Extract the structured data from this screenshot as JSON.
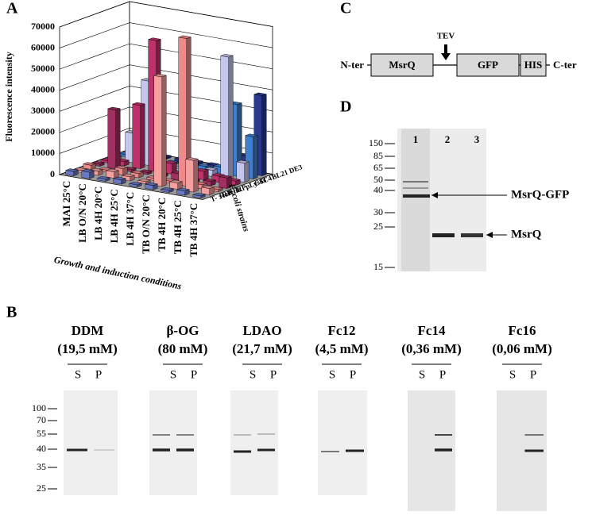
{
  "panel_labels": [
    "A",
    "B",
    "C",
    "D"
  ],
  "chart_data": {
    "type": "bar3d",
    "y_label": "Fluorescence intensity",
    "x_label": "Growth and induction conditions",
    "z_label": "E. coli strains",
    "categories": [
      "MAI 25°C",
      "LB O/N 20°C",
      "LB 4H 20°C",
      "LB 4H 25°C",
      "LB 4H 37°C",
      "TB O/N 20°C",
      "TB 4H 20°C",
      "TB 4H 25°C",
      "TB 4H 37°C"
    ],
    "series": [
      {
        "name": "BL21 DE3",
        "color": "#2b3a8f",
        "values": [
          1000,
          1000,
          1000,
          1000,
          1000,
          1000,
          2000,
          8000,
          38000
        ]
      },
      {
        "name": "C41",
        "color": "#3f7fcf",
        "values": [
          1000,
          1000,
          1000,
          1000,
          1000,
          2000,
          3000,
          34000,
          20000
        ]
      },
      {
        "name": "C43",
        "color": "#c4c6ec",
        "values": [
          1000,
          14000,
          40000,
          2000,
          1000,
          1000,
          3000,
          58000,
          9000
        ]
      },
      {
        "name": "pLysS",
        "color": "#c0306a",
        "values": [
          1000,
          2000,
          30000,
          62000,
          5000,
          2000,
          4000,
          3000,
          2000
        ]
      },
      {
        "name": "RP",
        "color": "#a03060",
        "values": [
          1000,
          28000,
          1000,
          1000,
          1000,
          3000,
          1000,
          2000,
          5000
        ]
      },
      {
        "name": "RIL",
        "color": "#f08a8a",
        "values": [
          2000,
          1000,
          3000,
          2000,
          1000,
          1000,
          70000,
          2000,
          1000
        ]
      },
      {
        "name": "Rosetta",
        "color": "#f4a0a0",
        "values": [
          1000,
          2000,
          3000,
          2000,
          1000,
          52000,
          3000,
          15000,
          3000
        ]
      },
      {
        "name": "T- : RP",
        "color": "#6a78c8",
        "values": [
          2000,
          3000,
          1000,
          2000,
          1000,
          2000,
          1000,
          2000,
          1000
        ]
      }
    ],
    "ylim": [
      0,
      70000
    ],
    "yticks": [
      0,
      10000,
      20000,
      30000,
      40000,
      50000,
      60000,
      70000
    ]
  },
  "panel_b": {
    "detergents": [
      {
        "name": "DDM",
        "concentration": "(19,5 mM)"
      },
      {
        "name": "β-OG",
        "concentration": "(80 mM)"
      },
      {
        "name": "LDAO",
        "concentration": "(21,7 mM)"
      },
      {
        "name": "Fc12",
        "concentration": "(4,5 mM)"
      },
      {
        "name": "Fc14",
        "concentration": "(0,36 mM)"
      },
      {
        "name": "Fc16",
        "concentration": "(0,06 mM)"
      }
    ],
    "lanes": [
      "S",
      "P"
    ],
    "markers": [
      100,
      70,
      55,
      40,
      35,
      25
    ]
  },
  "panel_c": {
    "n_term": "N-ter",
    "c_term": "C-ter",
    "tev": "TEV",
    "domains": [
      "MsrQ",
      "GFP",
      "HIS"
    ]
  },
  "panel_d": {
    "lanes": [
      "1",
      "2",
      "3"
    ],
    "markers": [
      150,
      85,
      65,
      50,
      40,
      30,
      25,
      15
    ],
    "annotations": [
      "MsrQ-GFP",
      "MsrQ"
    ]
  }
}
